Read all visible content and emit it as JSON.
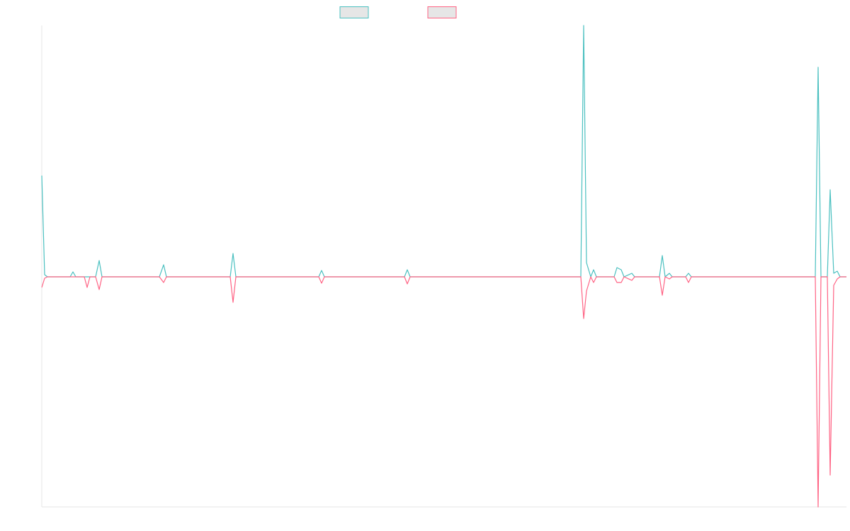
{
  "chart_data": {
    "type": "line",
    "x": [
      0,
      4,
      8,
      40,
      44,
      48,
      60,
      64,
      68,
      76,
      81,
      85,
      166,
      172,
      176,
      180,
      266,
      270,
      274,
      391,
      395,
      399,
      512,
      516,
      520,
      761,
      765,
      769,
      775,
      779,
      783,
      808,
      812,
      818,
      822,
      833,
      837,
      872,
      876,
      880,
      886,
      890,
      909,
      913,
      917,
      1092,
      1096,
      1100,
      1109,
      1113,
      1118,
      1123,
      1127,
      1136
    ],
    "xlim": [
      0,
      1136
    ],
    "ylim": [
      -325,
      355
    ],
    "series": [
      {
        "color": "#4bc0c0",
        "values": [
          143,
          3,
          0,
          0,
          7,
          0,
          0,
          0,
          0,
          0,
          23,
          0,
          0,
          17,
          0,
          0,
          0,
          33,
          0,
          0,
          9,
          0,
          0,
          10,
          0,
          0,
          355,
          20,
          0,
          10,
          0,
          0,
          13,
          10,
          0,
          5,
          0,
          0,
          30,
          0,
          5,
          0,
          0,
          5,
          0,
          0,
          296,
          0,
          0,
          123,
          5,
          8,
          0,
          0
        ]
      },
      {
        "color": "#ff6384",
        "values": [
          -15,
          -2,
          0,
          0,
          0,
          0,
          0,
          -15,
          0,
          0,
          -18,
          0,
          0,
          -8,
          0,
          0,
          0,
          -36,
          0,
          0,
          -9,
          0,
          0,
          -10,
          0,
          0,
          -59,
          -20,
          0,
          -8,
          0,
          0,
          -8,
          -8,
          0,
          -5,
          0,
          0,
          -26,
          0,
          -3,
          0,
          0,
          -8,
          0,
          0,
          -325,
          0,
          0,
          -280,
          -12,
          -3,
          0,
          0
        ]
      }
    ]
  }
}
